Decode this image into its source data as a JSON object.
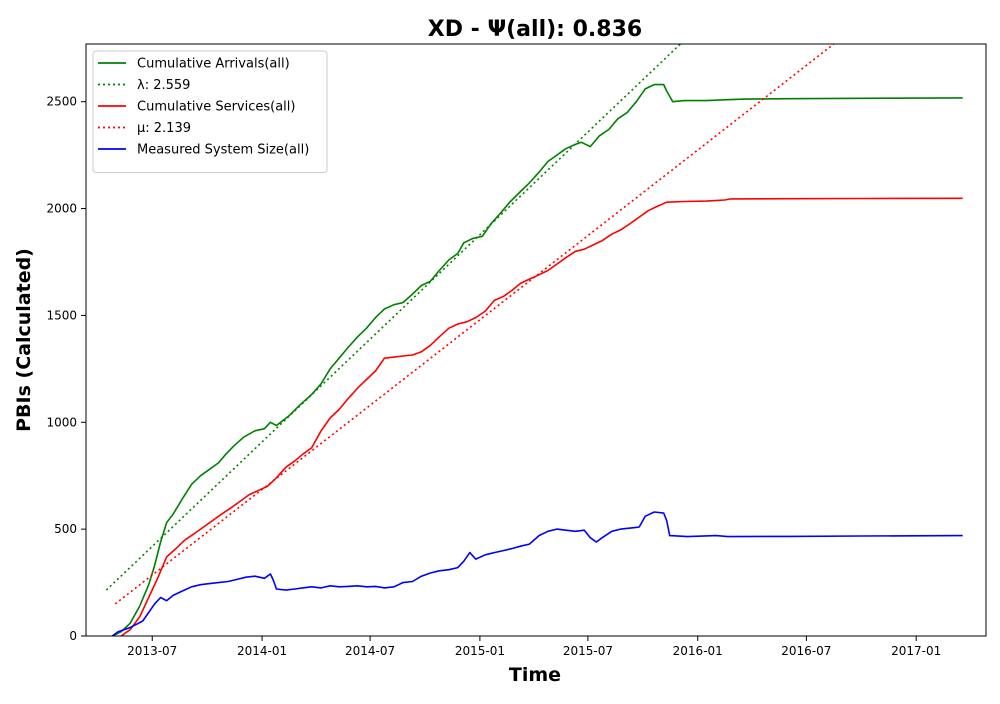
{
  "chart_data": {
    "type": "line",
    "title": "XD -  Ψ(all): 0.836",
    "xlabel": "Time",
    "ylabel": "PBIs (Calculated)",
    "xlim": [
      "2013-03-12",
      "2017-04-28"
    ],
    "ylim": [
      0,
      2770
    ],
    "x_ticks": [
      "2013-07",
      "2014-01",
      "2014-07",
      "2015-01",
      "2015-07",
      "2016-01",
      "2016-07",
      "2017-01"
    ],
    "y_ticks": [
      0,
      500,
      1000,
      1500,
      2000,
      2500
    ],
    "legend_position": "upper-left",
    "grid": false,
    "series": [
      {
        "name": "Cumulative Arrivals(all)",
        "style": "solid",
        "color": "#008000",
        "points": [
          [
            "2013-04-25",
            0
          ],
          [
            "2013-05-10",
            20
          ],
          [
            "2013-05-25",
            60
          ],
          [
            "2013-06-10",
            140
          ],
          [
            "2013-06-25",
            240
          ],
          [
            "2013-07-05",
            330
          ],
          [
            "2013-07-15",
            440
          ],
          [
            "2013-07-25",
            530
          ],
          [
            "2013-08-05",
            570
          ],
          [
            "2013-08-20",
            640
          ],
          [
            "2013-09-05",
            710
          ],
          [
            "2013-09-20",
            750
          ],
          [
            "2013-10-05",
            780
          ],
          [
            "2013-10-20",
            810
          ],
          [
            "2013-11-01",
            850
          ],
          [
            "2013-11-15",
            890
          ],
          [
            "2013-12-01",
            930
          ],
          [
            "2013-12-20",
            960
          ],
          [
            "2014-01-05",
            970
          ],
          [
            "2014-01-15",
            1000
          ],
          [
            "2014-01-25",
            985
          ],
          [
            "2014-02-15",
            1030
          ],
          [
            "2014-03-05",
            1080
          ],
          [
            "2014-03-25",
            1130
          ],
          [
            "2014-04-10",
            1180
          ],
          [
            "2014-04-25",
            1250
          ],
          [
            "2014-05-10",
            1300
          ],
          [
            "2014-05-25",
            1350
          ],
          [
            "2014-06-10",
            1400
          ],
          [
            "2014-06-25",
            1440
          ],
          [
            "2014-07-10",
            1490
          ],
          [
            "2014-07-25",
            1530
          ],
          [
            "2014-08-10",
            1550
          ],
          [
            "2014-08-25",
            1560
          ],
          [
            "2014-09-10",
            1600
          ],
          [
            "2014-09-25",
            1640
          ],
          [
            "2014-10-10",
            1660
          ],
          [
            "2014-10-25",
            1710
          ],
          [
            "2014-11-10",
            1760
          ],
          [
            "2014-11-25",
            1790
          ],
          [
            "2014-12-05",
            1840
          ],
          [
            "2014-12-20",
            1860
          ],
          [
            "2015-01-05",
            1870
          ],
          [
            "2015-01-20",
            1930
          ],
          [
            "2015-02-05",
            1980
          ],
          [
            "2015-02-20",
            2030
          ],
          [
            "2015-03-10",
            2080
          ],
          [
            "2015-03-25",
            2120
          ],
          [
            "2015-04-10",
            2170
          ],
          [
            "2015-04-25",
            2220
          ],
          [
            "2015-05-10",
            2250
          ],
          [
            "2015-05-25",
            2280
          ],
          [
            "2015-06-10",
            2300
          ],
          [
            "2015-06-20",
            2310
          ],
          [
            "2015-07-05",
            2290
          ],
          [
            "2015-07-20",
            2340
          ],
          [
            "2015-08-05",
            2370
          ],
          [
            "2015-08-20",
            2420
          ],
          [
            "2015-09-05",
            2450
          ],
          [
            "2015-09-20",
            2500
          ],
          [
            "2015-10-05",
            2560
          ],
          [
            "2015-10-20",
            2580
          ],
          [
            "2015-11-05",
            2580
          ],
          [
            "2015-11-10",
            2550
          ],
          [
            "2015-11-20",
            2500
          ],
          [
            "2015-12-10",
            2505
          ],
          [
            "2016-01-15",
            2505
          ],
          [
            "2016-02-25",
            2510
          ],
          [
            "2016-03-20",
            2512
          ],
          [
            "2016-06-01",
            2514
          ],
          [
            "2016-10-01",
            2516
          ],
          [
            "2017-03-20",
            2518
          ]
        ]
      },
      {
        "name": "λ: 2.559",
        "style": "dotted",
        "color": "#008000",
        "points": [
          [
            "2013-04-15",
            215
          ],
          [
            "2015-12-03",
            2770
          ]
        ]
      },
      {
        "name": "Cumulative Services(all)",
        "style": "solid",
        "color": "#ff0000",
        "points": [
          [
            "2013-05-10",
            0
          ],
          [
            "2013-05-25",
            30
          ],
          [
            "2013-06-10",
            90
          ],
          [
            "2013-06-25",
            180
          ],
          [
            "2013-07-10",
            270
          ],
          [
            "2013-07-25",
            370
          ],
          [
            "2013-08-10",
            410
          ],
          [
            "2013-08-25",
            450
          ],
          [
            "2013-09-10",
            480
          ],
          [
            "2013-09-25",
            510
          ],
          [
            "2013-10-10",
            540
          ],
          [
            "2013-10-25",
            570
          ],
          [
            "2013-11-10",
            600
          ],
          [
            "2013-11-25",
            630
          ],
          [
            "2013-12-10",
            660
          ],
          [
            "2013-12-25",
            680
          ],
          [
            "2014-01-10",
            700
          ],
          [
            "2014-01-25",
            740
          ],
          [
            "2014-02-10",
            790
          ],
          [
            "2014-02-25",
            820
          ],
          [
            "2014-03-10",
            850
          ],
          [
            "2014-03-25",
            880
          ],
          [
            "2014-04-10",
            960
          ],
          [
            "2014-04-25",
            1020
          ],
          [
            "2014-05-10",
            1060
          ],
          [
            "2014-05-25",
            1110
          ],
          [
            "2014-06-10",
            1160
          ],
          [
            "2014-06-25",
            1200
          ],
          [
            "2014-07-10",
            1240
          ],
          [
            "2014-07-25",
            1300
          ],
          [
            "2014-08-10",
            1305
          ],
          [
            "2014-08-25",
            1310
          ],
          [
            "2014-09-10",
            1315
          ],
          [
            "2014-09-25",
            1330
          ],
          [
            "2014-10-10",
            1360
          ],
          [
            "2014-10-25",
            1400
          ],
          [
            "2014-11-10",
            1440
          ],
          [
            "2014-11-25",
            1460
          ],
          [
            "2014-12-10",
            1470
          ],
          [
            "2014-12-25",
            1490
          ],
          [
            "2015-01-10",
            1520
          ],
          [
            "2015-01-25",
            1570
          ],
          [
            "2015-02-10",
            1590
          ],
          [
            "2015-02-25",
            1620
          ],
          [
            "2015-03-10",
            1650
          ],
          [
            "2015-03-25",
            1670
          ],
          [
            "2015-04-10",
            1690
          ],
          [
            "2015-04-25",
            1710
          ],
          [
            "2015-05-10",
            1740
          ],
          [
            "2015-05-25",
            1770
          ],
          [
            "2015-06-10",
            1800
          ],
          [
            "2015-06-25",
            1810
          ],
          [
            "2015-07-10",
            1830
          ],
          [
            "2015-07-25",
            1850
          ],
          [
            "2015-08-10",
            1880
          ],
          [
            "2015-08-25",
            1900
          ],
          [
            "2015-09-10",
            1930
          ],
          [
            "2015-09-25",
            1960
          ],
          [
            "2015-10-10",
            1990
          ],
          [
            "2015-10-25",
            2010
          ],
          [
            "2015-11-10",
            2030
          ],
          [
            "2015-12-10",
            2033
          ],
          [
            "2016-01-15",
            2035
          ],
          [
            "2016-02-15",
            2040
          ],
          [
            "2016-02-25",
            2045
          ],
          [
            "2016-06-01",
            2046
          ],
          [
            "2016-10-01",
            2047
          ],
          [
            "2017-03-20",
            2048
          ]
        ]
      },
      {
        "name": "μ: 2.139",
        "style": "dotted",
        "color": "#ff0000",
        "points": [
          [
            "2013-04-30",
            150
          ],
          [
            "2016-08-16",
            2770
          ]
        ]
      },
      {
        "name": "Measured System Size(all)",
        "style": "solid",
        "color": "#0000ff",
        "points": [
          [
            "2013-04-25",
            0
          ],
          [
            "2013-05-05",
            20
          ],
          [
            "2013-05-15",
            30
          ],
          [
            "2013-05-25",
            40
          ],
          [
            "2013-06-05",
            55
          ],
          [
            "2013-06-15",
            70
          ],
          [
            "2013-06-25",
            110
          ],
          [
            "2013-07-05",
            150
          ],
          [
            "2013-07-15",
            180
          ],
          [
            "2013-07-25",
            165
          ],
          [
            "2013-08-05",
            190
          ],
          [
            "2013-08-20",
            210
          ],
          [
            "2013-09-05",
            230
          ],
          [
            "2013-09-20",
            240
          ],
          [
            "2013-10-05",
            245
          ],
          [
            "2013-10-20",
            250
          ],
          [
            "2013-11-05",
            255
          ],
          [
            "2013-11-20",
            265
          ],
          [
            "2013-12-05",
            275
          ],
          [
            "2013-12-20",
            280
          ],
          [
            "2014-01-05",
            270
          ],
          [
            "2014-01-15",
            290
          ],
          [
            "2014-01-20",
            260
          ],
          [
            "2014-01-25",
            220
          ],
          [
            "2014-02-10",
            215
          ],
          [
            "2014-02-25",
            220
          ],
          [
            "2014-03-10",
            225
          ],
          [
            "2014-03-25",
            230
          ],
          [
            "2014-04-10",
            225
          ],
          [
            "2014-04-25",
            235
          ],
          [
            "2014-05-10",
            230
          ],
          [
            "2014-05-25",
            232
          ],
          [
            "2014-06-10",
            235
          ],
          [
            "2014-06-25",
            230
          ],
          [
            "2014-07-10",
            232
          ],
          [
            "2014-07-25",
            225
          ],
          [
            "2014-08-10",
            230
          ],
          [
            "2014-08-25",
            250
          ],
          [
            "2014-09-10",
            255
          ],
          [
            "2014-09-25",
            280
          ],
          [
            "2014-10-10",
            295
          ],
          [
            "2014-10-25",
            305
          ],
          [
            "2014-11-10",
            310
          ],
          [
            "2014-11-25",
            320
          ],
          [
            "2014-12-05",
            350
          ],
          [
            "2014-12-15",
            390
          ],
          [
            "2014-12-25",
            360
          ],
          [
            "2015-01-10",
            380
          ],
          [
            "2015-01-25",
            390
          ],
          [
            "2015-02-10",
            400
          ],
          [
            "2015-02-25",
            410
          ],
          [
            "2015-03-10",
            420
          ],
          [
            "2015-03-25",
            430
          ],
          [
            "2015-04-10",
            470
          ],
          [
            "2015-04-25",
            490
          ],
          [
            "2015-05-10",
            500
          ],
          [
            "2015-05-25",
            495
          ],
          [
            "2015-06-10",
            490
          ],
          [
            "2015-06-25",
            495
          ],
          [
            "2015-07-05",
            460
          ],
          [
            "2015-07-15",
            440
          ],
          [
            "2015-07-25",
            460
          ],
          [
            "2015-08-10",
            490
          ],
          [
            "2015-08-25",
            500
          ],
          [
            "2015-09-10",
            505
          ],
          [
            "2015-09-25",
            510
          ],
          [
            "2015-10-05",
            560
          ],
          [
            "2015-10-20",
            580
          ],
          [
            "2015-11-05",
            575
          ],
          [
            "2015-11-10",
            540
          ],
          [
            "2015-11-15",
            470
          ],
          [
            "2015-12-15",
            465
          ],
          [
            "2016-02-01",
            470
          ],
          [
            "2016-02-20",
            465
          ],
          [
            "2016-06-01",
            466
          ],
          [
            "2016-10-01",
            468
          ],
          [
            "2017-03-20",
            470
          ]
        ]
      }
    ]
  }
}
